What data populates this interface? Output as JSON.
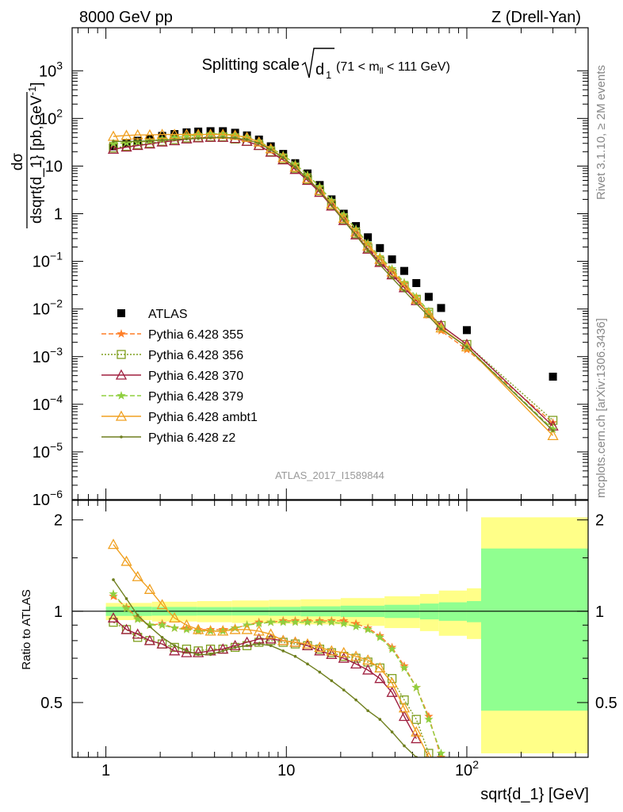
{
  "header": {
    "left": "8000 GeV pp",
    "right": "Z (Drell-Yan)",
    "plot_title_main": "Splitting scale",
    "plot_title_sym": "d",
    "plot_title_sub": "1",
    "plot_title_cut_a": "(71 < m",
    "plot_title_cut_sub": "ll",
    "plot_title_cut_b": " < 111 GeV)",
    "side_rivet": "Rivet 3.1.10, ≥ 2M events",
    "side_mcplots": "mcplots.cern.ch [arXiv:1306.3436]",
    "analysis_id": "ATLAS_2017_I1589844"
  },
  "chart_data": [
    {
      "type": "scatter",
      "panel": "main",
      "ylabel": "dσ / dsqrt{d_1} [pb,GeV⁻¹]",
      "ylabel_num": "dσ",
      "ylabel_den": "dsqrt{d_1} [pb,GeV",
      "ylabel_exp": "-1",
      "ylabel_end": "]",
      "x_scale": "log",
      "y_scale": "log",
      "xlim": [
        0.65,
        470
      ],
      "ylim": [
        1e-06,
        8000
      ],
      "y_ticks": [
        {
          "v": 1e-06,
          "base": "10",
          "exp": "−6"
        },
        {
          "v": 1e-05,
          "base": "10",
          "exp": "−5"
        },
        {
          "v": 0.0001,
          "base": "10",
          "exp": "−4"
        },
        {
          "v": 0.001,
          "base": "10",
          "exp": "−3"
        },
        {
          "v": 0.01,
          "base": "10",
          "exp": "−2"
        },
        {
          "v": 0.1,
          "base": "10",
          "exp": "−1"
        },
        {
          "v": 1,
          "base": "1",
          "exp": ""
        },
        {
          "v": 10,
          "base": "10",
          "exp": ""
        },
        {
          "v": 100,
          "base": "10",
          "exp": "2"
        },
        {
          "v": 1000,
          "base": "10",
          "exp": "3"
        }
      ],
      "legend_position": "left-middle",
      "series": [
        {
          "name": "ATLAS",
          "color": "#000000",
          "marker": "square",
          "line": "none",
          "x": [
            1.1,
            1.3,
            1.5,
            1.75,
            2.05,
            2.4,
            2.8,
            3.25,
            3.8,
            4.45,
            5.2,
            6.05,
            7.05,
            8.2,
            9.6,
            11.2,
            13.1,
            15.3,
            17.8,
            20.8,
            24.3,
            28.3,
            33.0,
            38.5,
            45.0,
            52.5,
            61.5,
            72.0,
            100.0,
            300.0
          ],
          "y": [
            26,
            30,
            34,
            38,
            43,
            47,
            51,
            53,
            54,
            54,
            50,
            44,
            36,
            26,
            18,
            11.5,
            7.0,
            4.0,
            2.0,
            1.0,
            0.55,
            0.32,
            0.19,
            0.11,
            0.063,
            0.035,
            0.018,
            0.0105,
            0.0036,
            0.00038
          ]
        },
        {
          "name": "Pythia 6.428 355",
          "color": "#ff7f27",
          "marker": "star",
          "line": "dashed",
          "x": [
            1.1,
            1.3,
            1.5,
            1.75,
            2.05,
            2.4,
            2.8,
            3.25,
            3.8,
            4.45,
            5.2,
            6.05,
            7.05,
            8.2,
            9.6,
            11.2,
            13.1,
            15.3,
            17.8,
            20.8,
            24.3,
            28.3,
            33.0,
            38.5,
            45.0,
            52.5,
            61.5,
            72.0,
            100.0,
            300.0
          ],
          "y": [
            29,
            31,
            32,
            33,
            36,
            39,
            43,
            45,
            47,
            47,
            44,
            40,
            33,
            24,
            17,
            11,
            6.5,
            3.7,
            1.85,
            0.93,
            0.47,
            0.23,
            0.12,
            0.065,
            0.033,
            0.016,
            0.0075,
            0.0035,
            0.0014,
            4.1e-05
          ]
        },
        {
          "name": "Pythia 6.428 356",
          "color": "#7f9f1f",
          "marker": "open-square",
          "line": "dotted",
          "x": [
            1.1,
            1.3,
            1.5,
            1.75,
            2.05,
            2.4,
            2.8,
            3.25,
            3.8,
            4.45,
            5.2,
            6.05,
            7.05,
            8.2,
            9.6,
            11.2,
            13.1,
            15.3,
            17.8,
            20.8,
            24.3,
            28.3,
            33.0,
            38.5,
            45.0,
            52.5,
            61.5,
            72.0,
            100.0,
            300.0
          ],
          "y": [
            24,
            26,
            28,
            30,
            33,
            36,
            39,
            40,
            41,
            41,
            37,
            33,
            27,
            20,
            14,
            9,
            5.2,
            3.0,
            1.5,
            0.75,
            0.38,
            0.19,
            0.1,
            0.055,
            0.03,
            0.016,
            0.0085,
            0.0045,
            0.0018,
            4.6e-05
          ]
        },
        {
          "name": "Pythia 6.428 370",
          "color": "#9f1f3f",
          "marker": "open-triangle",
          "line": "solid",
          "x": [
            1.1,
            1.3,
            1.5,
            1.75,
            2.05,
            2.4,
            2.8,
            3.25,
            3.8,
            4.45,
            5.2,
            6.05,
            7.05,
            8.2,
            9.6,
            11.2,
            13.1,
            15.3,
            17.8,
            20.8,
            24.3,
            28.3,
            33.0,
            38.5,
            45.0,
            52.5,
            61.5,
            72.0,
            100.0,
            300.0
          ],
          "y": [
            22.5,
            25,
            27,
            29,
            32,
            34,
            37,
            39,
            40,
            40,
            38,
            33,
            27,
            19.5,
            13.5,
            8.5,
            5.0,
            2.8,
            1.45,
            0.72,
            0.36,
            0.18,
            0.095,
            0.052,
            0.028,
            0.015,
            0.008,
            0.0045,
            0.0018,
            3.5e-05
          ]
        },
        {
          "name": "Pythia 6.428 379",
          "color": "#8fcf3f",
          "marker": "star",
          "line": "dashed",
          "x": [
            1.1,
            1.3,
            1.5,
            1.75,
            2.05,
            2.4,
            2.8,
            3.25,
            3.8,
            4.45,
            5.2,
            6.05,
            7.05,
            8.2,
            9.6,
            11.2,
            13.1,
            15.3,
            17.8,
            20.8,
            24.3,
            28.3,
            33.0,
            38.5,
            45.0,
            52.5,
            61.5,
            72.0,
            100.0,
            300.0
          ],
          "y": [
            30,
            31,
            32,
            34,
            36,
            39,
            42,
            45,
            47,
            47,
            45,
            40,
            33,
            24,
            17,
            11,
            6.5,
            3.7,
            1.9,
            0.95,
            0.48,
            0.24,
            0.125,
            0.07,
            0.036,
            0.018,
            0.009,
            0.004,
            0.0016,
            3e-05
          ]
        },
        {
          "name": "Pythia 6.428 ambt1",
          "color": "#f0a020",
          "marker": "open-triangle",
          "line": "solid",
          "x": [
            1.1,
            1.3,
            1.5,
            1.75,
            2.05,
            2.4,
            2.8,
            3.25,
            3.8,
            4.45,
            5.2,
            6.05,
            7.05,
            8.2,
            9.6,
            11.2,
            13.1,
            15.3,
            17.8,
            20.8,
            24.3,
            28.3,
            33.0,
            38.5,
            45.0,
            52.5,
            61.5,
            72.0,
            100.0,
            300.0
          ],
          "y": [
            42,
            44,
            45,
            45,
            46,
            46,
            46,
            46,
            46,
            46,
            44,
            40,
            32,
            23,
            15,
            9.5,
            5.5,
            3.1,
            1.6,
            0.8,
            0.41,
            0.21,
            0.11,
            0.06,
            0.031,
            0.016,
            0.008,
            0.004,
            0.0016,
            2.2e-05
          ]
        },
        {
          "name": "Pythia 6.428 z2",
          "color": "#6f7f1f",
          "marker": "dot",
          "line": "solid",
          "x": [
            1.1,
            1.3,
            1.5,
            1.75,
            2.05,
            2.4,
            2.8,
            3.25,
            3.8,
            4.45,
            5.2,
            6.05,
            7.05,
            8.2,
            9.6,
            11.2,
            13.1,
            15.3,
            17.8,
            20.8,
            24.3,
            28.3,
            33.0,
            38.5,
            45.0,
            52.5,
            61.5,
            72.0,
            100.0,
            300.0
          ],
          "y": [
            33,
            33,
            33,
            34,
            35,
            36,
            37,
            38,
            39,
            40,
            39,
            36,
            30,
            22,
            15,
            9.5,
            5.5,
            3.0,
            1.5,
            0.72,
            0.35,
            0.17,
            0.085,
            0.045,
            0.024,
            0.013,
            0.007,
            0.0038,
            0.0016,
            2.8e-05
          ]
        }
      ]
    },
    {
      "type": "line",
      "panel": "ratio",
      "ylabel": "Ratio to ATLAS",
      "xlabel": "sqrt{d_1} [GeV]",
      "x_scale": "log",
      "xlim": [
        0.65,
        470
      ],
      "ylim": [
        0.33,
        2.32
      ],
      "y_ticks": [
        0.5,
        1,
        2
      ],
      "x_ticks": [
        {
          "v": 1,
          "base": "1",
          "exp": ""
        },
        {
          "v": 10,
          "base": "10",
          "exp": ""
        },
        {
          "v": 100,
          "base": "10",
          "exp": "2"
        }
      ],
      "bands": {
        "edges": [
          1.0,
          1.8,
          3.2,
          5.0,
          8.0,
          12.0,
          20.0,
          35.0,
          55.0,
          70.0,
          100.0,
          120.0,
          470.0
        ],
        "stat_lo": [
          0.965,
          0.967,
          0.968,
          0.968,
          0.966,
          0.962,
          0.957,
          0.95,
          0.94,
          0.93,
          0.92,
          0.47
        ],
        "stat_hi": [
          1.035,
          1.033,
          1.032,
          1.032,
          1.034,
          1.038,
          1.043,
          1.05,
          1.06,
          1.07,
          1.08,
          1.61
        ],
        "tot_lo": [
          0.935,
          0.925,
          0.92,
          0.915,
          0.91,
          0.905,
          0.895,
          0.88,
          0.86,
          0.83,
          0.81,
          0.34
        ],
        "tot_hi": [
          1.065,
          1.075,
          1.08,
          1.085,
          1.09,
          1.095,
          1.105,
          1.12,
          1.14,
          1.17,
          1.19,
          2.04
        ]
      },
      "series": [
        {
          "name": "Pythia 6.428 355",
          "color": "#ff7f27",
          "x": [
            1.1,
            1.3,
            1.5,
            1.75,
            2.05,
            2.4,
            2.8,
            3.25,
            3.8,
            4.45,
            5.2,
            6.05,
            7.05,
            8.2,
            9.6,
            11.2,
            13.1,
            15.3,
            17.8,
            20.8,
            24.3,
            28.3,
            33.0,
            38.5,
            45.0,
            52.5,
            61.5,
            72.0
          ],
          "y": [
            1.12,
            1.03,
            0.95,
            0.9,
            0.91,
            0.88,
            0.88,
            0.87,
            0.87,
            0.87,
            0.88,
            0.9,
            0.92,
            0.92,
            0.93,
            0.93,
            0.93,
            0.93,
            0.93,
            0.93,
            0.91,
            0.88,
            0.83,
            0.76,
            0.66,
            0.56,
            0.45,
            0.33
          ]
        },
        {
          "name": "Pythia 6.428 356",
          "color": "#7f9f1f",
          "x": [
            1.1,
            1.3,
            1.5,
            1.75,
            2.05,
            2.4,
            2.8,
            3.25,
            3.8,
            4.45,
            5.2,
            6.05,
            7.05,
            8.2,
            9.6,
            11.2,
            13.1,
            15.3,
            17.8,
            20.8,
            24.3,
            28.3,
            33.0,
            38.5,
            45.0,
            52.5,
            61.5
          ],
          "y": [
            0.92,
            0.87,
            0.82,
            0.8,
            0.78,
            0.76,
            0.75,
            0.74,
            0.75,
            0.75,
            0.76,
            0.77,
            0.79,
            0.8,
            0.79,
            0.78,
            0.77,
            0.75,
            0.73,
            0.71,
            0.7,
            0.68,
            0.65,
            0.6,
            0.51,
            0.44,
            0.34
          ]
        },
        {
          "name": "Pythia 6.428 370",
          "color": "#9f1f3f",
          "x": [
            1.1,
            1.3,
            1.5,
            1.75,
            2.05,
            2.4,
            2.8,
            3.25,
            3.8,
            4.45,
            5.2,
            6.05,
            7.05,
            8.2,
            9.6,
            11.2,
            13.1,
            15.3,
            17.8,
            20.8,
            24.3,
            28.3,
            33.0,
            38.5,
            45.0,
            52.5
          ],
          "y": [
            0.95,
            0.87,
            0.84,
            0.8,
            0.78,
            0.74,
            0.73,
            0.73,
            0.74,
            0.75,
            0.77,
            0.79,
            0.81,
            0.81,
            0.8,
            0.79,
            0.77,
            0.74,
            0.72,
            0.7,
            0.67,
            0.64,
            0.6,
            0.54,
            0.45,
            0.38
          ]
        },
        {
          "name": "Pythia 6.428 379",
          "color": "#8fcf3f",
          "x": [
            1.1,
            1.3,
            1.5,
            1.75,
            2.05,
            2.4,
            2.8,
            3.25,
            3.8,
            4.45,
            5.2,
            6.05,
            7.05,
            8.2,
            9.6,
            11.2,
            13.1,
            15.3,
            17.8,
            20.8,
            24.3,
            28.3,
            33.0,
            38.5,
            45.0,
            52.5,
            61.5,
            72.0
          ],
          "y": [
            1.14,
            1.02,
            0.94,
            0.9,
            0.9,
            0.88,
            0.87,
            0.86,
            0.86,
            0.86,
            0.88,
            0.9,
            0.91,
            0.92,
            0.92,
            0.92,
            0.92,
            0.92,
            0.92,
            0.91,
            0.89,
            0.87,
            0.82,
            0.75,
            0.65,
            0.56,
            0.44,
            0.34
          ]
        },
        {
          "name": "Pythia 6.428 ambt1",
          "color": "#f0a020",
          "x": [
            1.1,
            1.3,
            1.5,
            1.75,
            2.05,
            2.4,
            2.8,
            3.25,
            3.8,
            4.45,
            5.2,
            6.05,
            7.05,
            8.2,
            9.6,
            11.2,
            13.1,
            15.3,
            17.8,
            20.8,
            24.3,
            28.3,
            33.0,
            38.5,
            45.0,
            52.5,
            61.5
          ],
          "y": [
            1.66,
            1.46,
            1.3,
            1.18,
            1.05,
            0.95,
            0.9,
            0.87,
            0.86,
            0.86,
            0.87,
            0.87,
            0.86,
            0.84,
            0.8,
            0.79,
            0.78,
            0.76,
            0.74,
            0.73,
            0.71,
            0.69,
            0.65,
            0.58,
            0.48,
            0.4,
            0.33
          ]
        },
        {
          "name": "Pythia 6.428 z2",
          "color": "#6f7f1f",
          "x": [
            1.1,
            1.3,
            1.5,
            1.75,
            2.05,
            2.4,
            2.8,
            3.25,
            3.8,
            4.45,
            5.2,
            6.05,
            7.05,
            8.2,
            9.6,
            11.2,
            13.1,
            15.3,
            17.8,
            20.8,
            24.3,
            28.3,
            33.0,
            38.5,
            45.0,
            52.5
          ],
          "y": [
            1.27,
            1.1,
            0.97,
            0.89,
            0.82,
            0.77,
            0.74,
            0.72,
            0.72,
            0.74,
            0.76,
            0.77,
            0.78,
            0.77,
            0.74,
            0.71,
            0.67,
            0.63,
            0.59,
            0.55,
            0.51,
            0.47,
            0.44,
            0.4,
            0.36,
            0.33
          ]
        }
      ]
    }
  ]
}
